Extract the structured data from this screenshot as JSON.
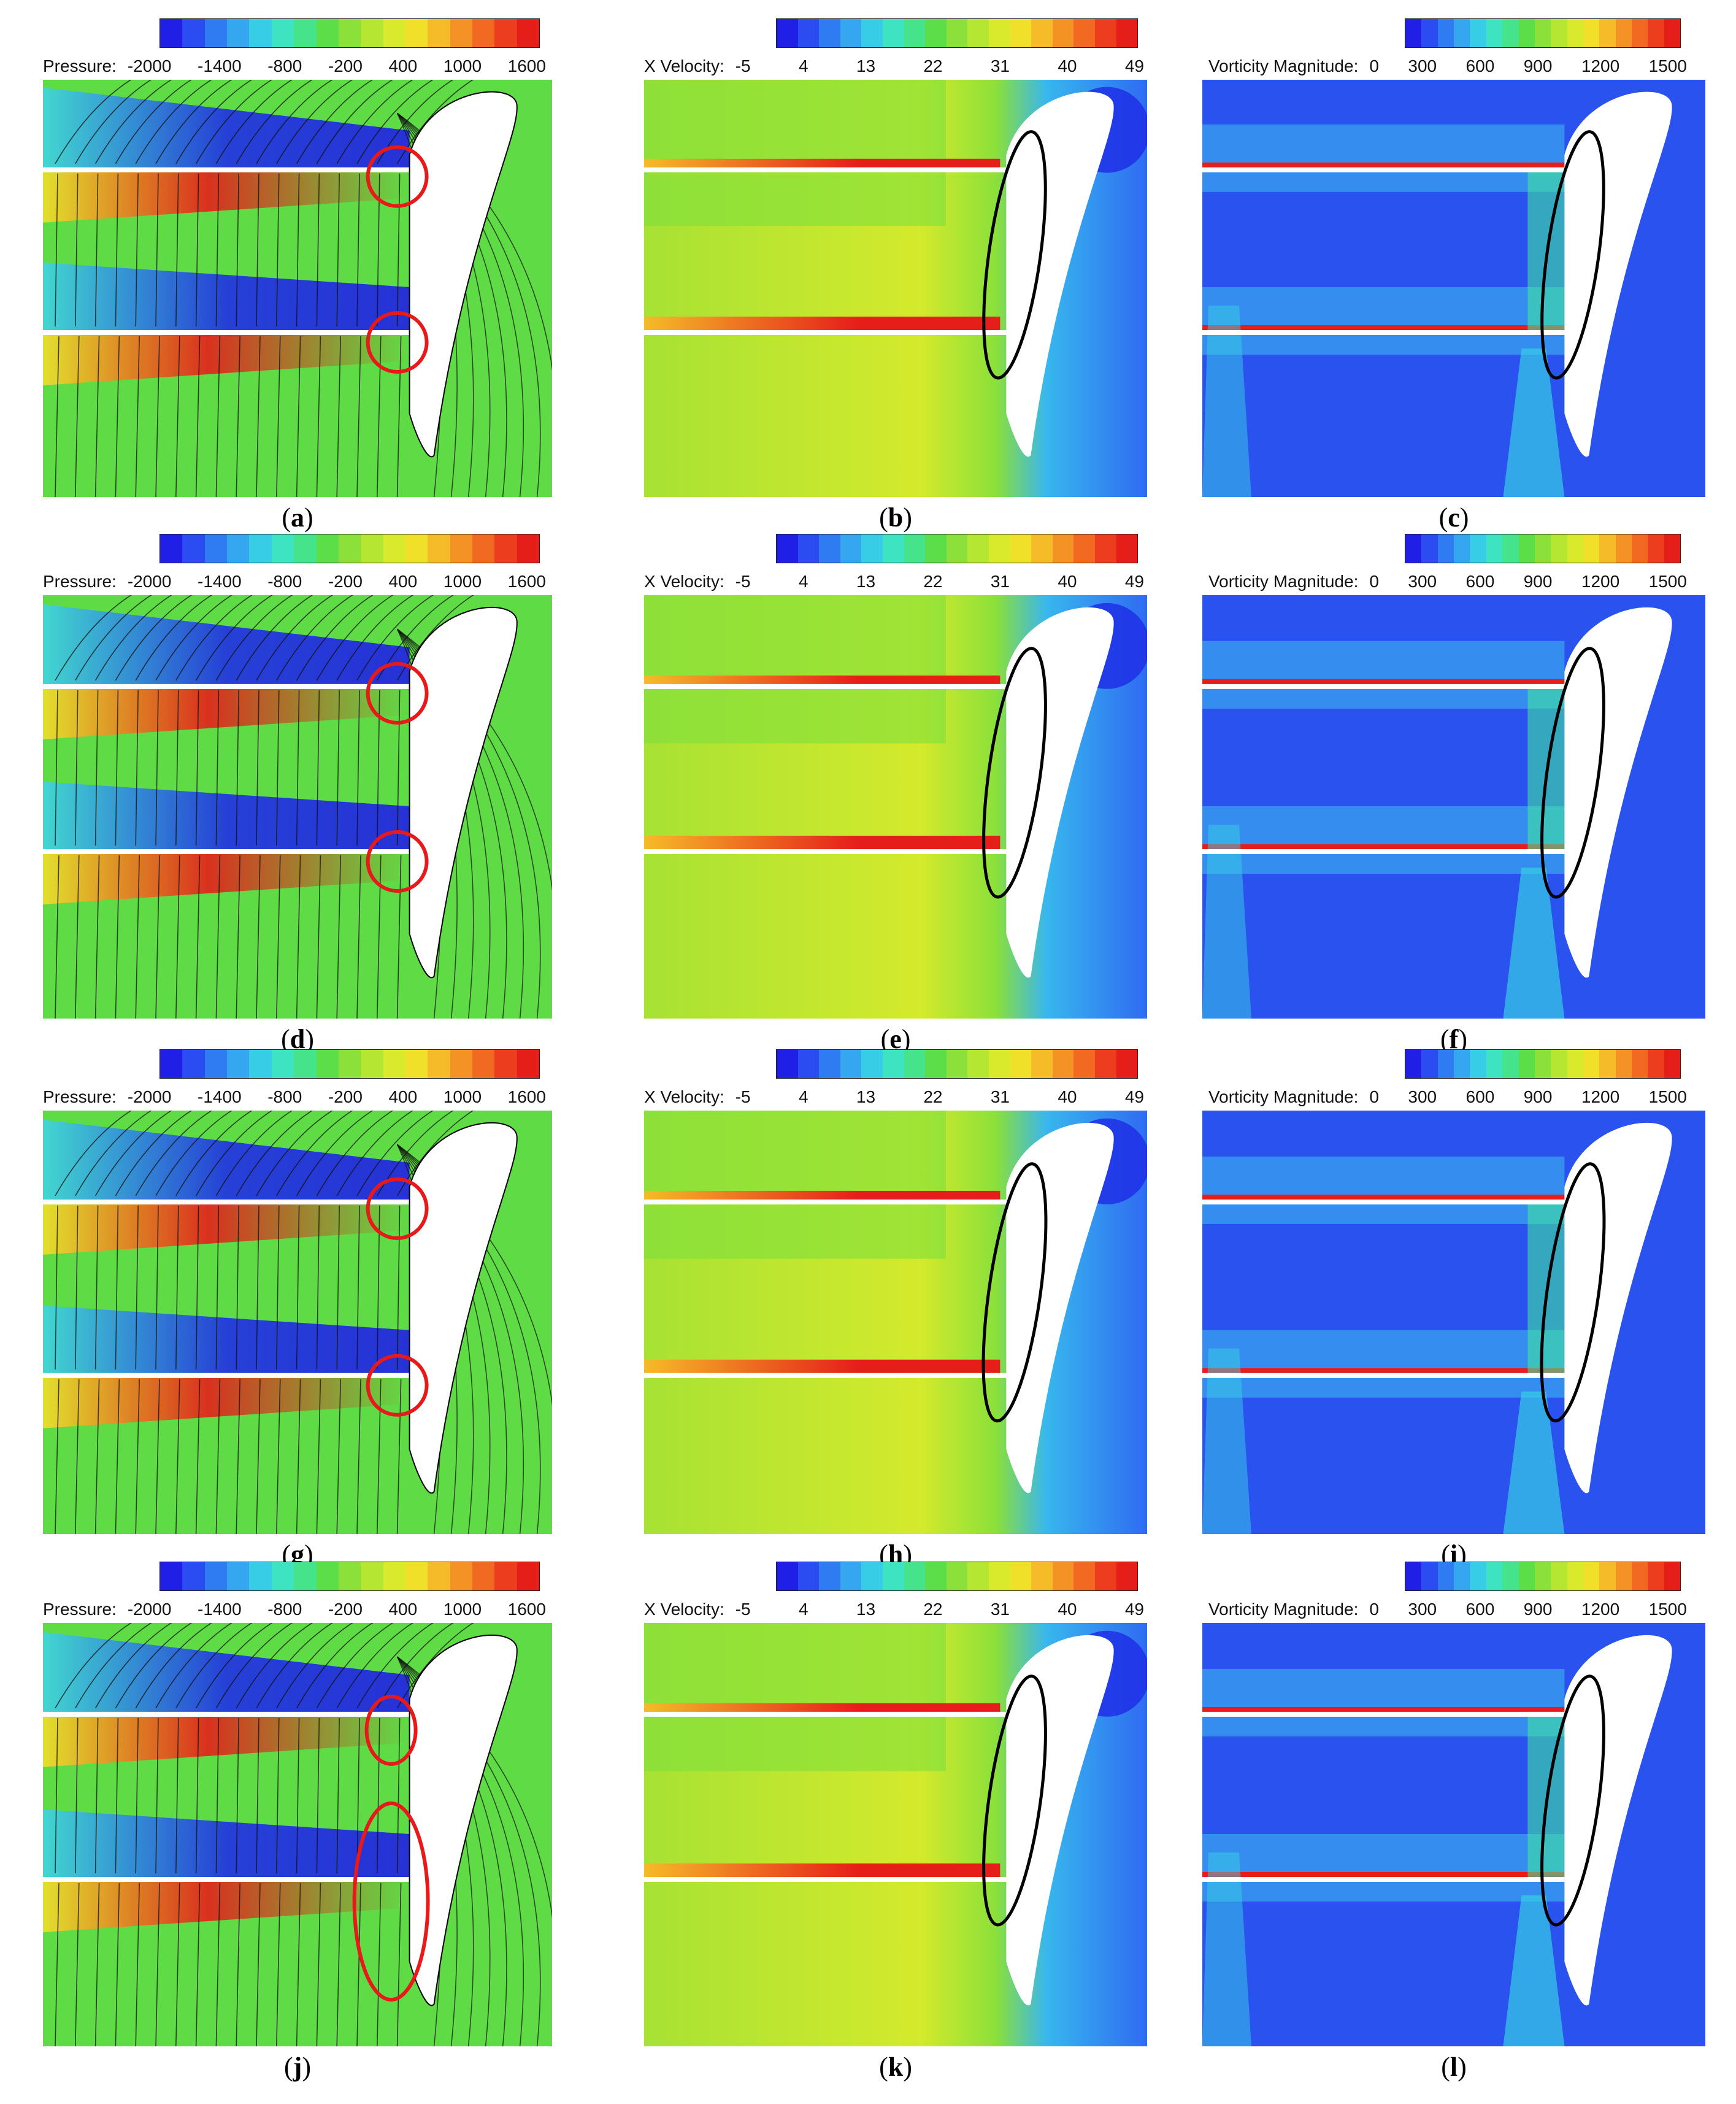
{
  "legend_types": {
    "pressure": {
      "label": "Pressure:",
      "ticks": [
        "-2000",
        "-1400",
        "-800",
        "-200",
        "400",
        "1000",
        "1600"
      ]
    },
    "xvel": {
      "label": "X Velocity:",
      "ticks": [
        "-5",
        "4",
        "13",
        "22",
        "31",
        "40",
        "49"
      ]
    },
    "vort": {
      "label": "Vorticity Magnitude:",
      "ticks": [
        "0",
        "300",
        "600",
        "900",
        "1200",
        "1500"
      ]
    }
  },
  "colormap": [
    "#1f1fe6",
    "#2a4cf0",
    "#2f7bf2",
    "#35a6f0",
    "#38cde6",
    "#3ee3c2",
    "#45e38a",
    "#5bde47",
    "#8be03a",
    "#b5e632",
    "#d9ea2c",
    "#f1e02a",
    "#f5bb28",
    "#f59226",
    "#f26a22",
    "#ec3d1e",
    "#e61e1a"
  ],
  "panels": [
    {
      "id": "a",
      "caption": "a",
      "kind": "pressure"
    },
    {
      "id": "b",
      "caption": "b",
      "kind": "xvel"
    },
    {
      "id": "c",
      "caption": "c",
      "kind": "vort"
    },
    {
      "id": "d",
      "caption": "d",
      "kind": "pressure"
    },
    {
      "id": "e",
      "caption": "e",
      "kind": "xvel"
    },
    {
      "id": "f",
      "caption": "f",
      "kind": "vort"
    },
    {
      "id": "g",
      "caption": "g",
      "kind": "pressure"
    },
    {
      "id": "h",
      "caption": "h",
      "kind": "xvel"
    },
    {
      "id": "i",
      "caption": "i",
      "kind": "vort"
    },
    {
      "id": "j",
      "caption": "j",
      "kind": "pressure"
    },
    {
      "id": "k",
      "caption": "k",
      "kind": "xvel"
    },
    {
      "id": "l",
      "caption": "l",
      "kind": "vort"
    }
  ],
  "annotation_colors": {
    "pressure": "#e8191a",
    "xvel": "#000000",
    "vort": "#000000"
  }
}
